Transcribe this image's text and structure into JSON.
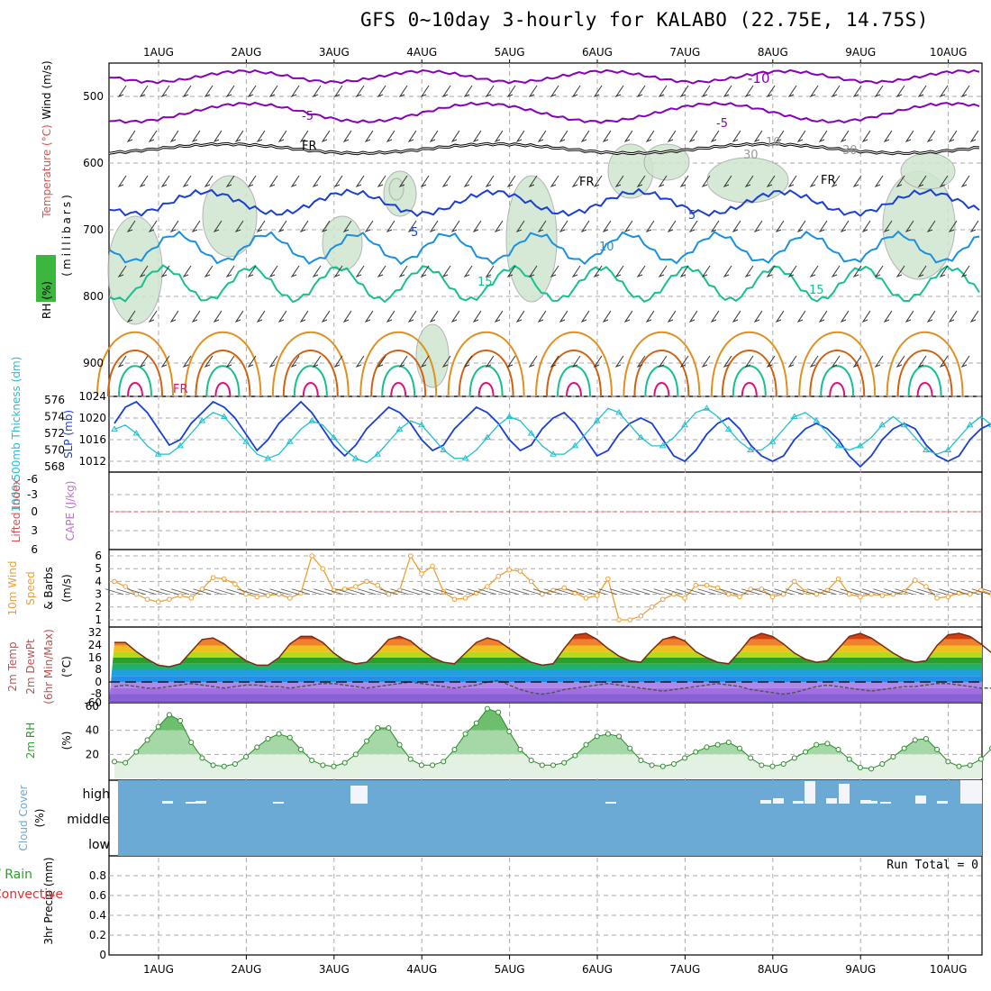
{
  "title": "GFS 0~10day 3-hourly for KALABO (22.75E, 14.75S)",
  "colors": {
    "grid": "#aaaaaa",
    "purple": "#8800bb",
    "black": "#000000",
    "blue": "#1a3fd6",
    "lightblue": "#1a90e0",
    "teal": "#18c090",
    "orange": "#e09020",
    "darkorange": "#d06010",
    "magenta": "#e0107a",
    "rh_fill": "#5aaa5a",
    "slp": "#1a3fd6",
    "thick": "#20c0d0",
    "ws": "#f0a030",
    "cloud": "#6aaad4",
    "precip_red": "#e03030",
    "rh2m": "#2aa02a"
  },
  "chart_data": [
    {
      "type": "line",
      "panel": "pressure-levels",
      "days": [
        "1AUG",
        "2AUG",
        "3AUG",
        "4AUG",
        "5AUG",
        "6AUG",
        "7AUG",
        "8AUG",
        "9AUG",
        "10AUG"
      ],
      "ylabel_parts": [
        "RH (%)",
        "Temperature (°C)",
        "Wind (m/s)",
        "(millibars)"
      ],
      "yticks": [
        500,
        600,
        700,
        800,
        900
      ],
      "ylim": [
        950,
        450
      ],
      "contour_labels": [
        "-10",
        "-5",
        "-5",
        "FR",
        "FR",
        "FR",
        "FR",
        "5",
        "5",
        "10",
        "15",
        "15",
        "10",
        "30",
        "30"
      ]
    },
    {
      "type": "line",
      "panel": "slp-thickness",
      "ylabel_left": "1000-500mb Thickness (dm)",
      "ylabel_right": "SLP (mb)",
      "thick_ticks": [
        568,
        570,
        572,
        574,
        576
      ],
      "slp_ticks": [
        1012,
        1016,
        1020,
        1024
      ],
      "series": [
        {
          "name": "SLP (mb)",
          "values": [
            1019,
            1022,
            1023,
            1021,
            1018,
            1015,
            1016,
            1019,
            1021,
            1023,
            1022,
            1020,
            1017,
            1014,
            1016,
            1019,
            1021,
            1023,
            1021,
            1018,
            1015,
            1013,
            1015,
            1018,
            1020,
            1022,
            1021,
            1019,
            1016,
            1014,
            1015,
            1018,
            1020,
            1022,
            1021,
            1019,
            1016,
            1014,
            1015,
            1018,
            1020,
            1021,
            1019,
            1016,
            1013,
            1014,
            1017,
            1019,
            1020,
            1019,
            1016,
            1013,
            1012,
            1014,
            1017,
            1019,
            1020,
            1018,
            1015,
            1013,
            1012,
            1013,
            1016,
            1018,
            1019,
            1018,
            1016,
            1013,
            1011,
            1013,
            1016,
            1018,
            1019,
            1018,
            1015,
            1013,
            1012,
            1013,
            1016,
            1018,
            1019,
            1017,
            1015,
            1013,
            1014,
            1016,
            1018,
            1020
          ]
        },
        {
          "name": "1000-500mb Thickness (dm)",
          "values": [
            572.5,
            573,
            572,
            570.5,
            569.5,
            569.5,
            570.5,
            572,
            573.5,
            574.5,
            574,
            572.5,
            571,
            569.5,
            569,
            569.5,
            571,
            572.5,
            573.5,
            573,
            571.5,
            570,
            569,
            568.5,
            569.5,
            571,
            572.5,
            573.5,
            573,
            571.5,
            570,
            569,
            569,
            570,
            571.5,
            573,
            574,
            573.5,
            572,
            570.5,
            569.5,
            569.5,
            570.5,
            572,
            573.5,
            575,
            574.5,
            573,
            571.5,
            570.5,
            570.5,
            571.5,
            573,
            574.5,
            575,
            574,
            572.5,
            571,
            570,
            570,
            571,
            572.5,
            574,
            574.5,
            573.5,
            572,
            570.5,
            570,
            570.5,
            571.5,
            573,
            574,
            573,
            571.5,
            570,
            569.5,
            570,
            571.5,
            573,
            574,
            573,
            571.5,
            570,
            569.5,
            570,
            571,
            572
          ]
        }
      ]
    },
    {
      "type": "line",
      "panel": "lifted-index-cape",
      "ylabel_a": "Lifted Index",
      "ylabel_b": "CAPE (J/kg)",
      "yticks": [
        "-6",
        "-3",
        "0",
        "3",
        "6"
      ]
    },
    {
      "type": "line",
      "panel": "10m-wind",
      "ylabel_a": "10m Wind",
      "ylabel_b": "Speed",
      "ylabel_c": "& Barbs",
      "ylabel_unit": "(m/s)",
      "yticks": [
        1,
        2,
        3,
        4,
        5,
        6
      ],
      "series": [
        {
          "name": "10m Wind Speed (m/s)",
          "values": [
            4.0,
            3.6,
            3.0,
            2.6,
            2.4,
            2.6,
            2.9,
            2.7,
            3.4,
            4.3,
            4.2,
            3.8,
            3.0,
            2.8,
            2.9,
            3.0,
            2.7,
            3.1,
            6.0,
            5.0,
            3.3,
            3.4,
            3.6,
            4.0,
            3.7,
            3.0,
            3.3,
            6.0,
            4.6,
            5.2,
            3.2,
            2.6,
            2.7,
            3.1,
            3.6,
            4.4,
            4.9,
            4.8,
            4.0,
            3.0,
            3.3,
            3.5,
            3.1,
            2.7,
            2.9,
            4.2,
            1.0,
            1.0,
            1.3,
            2.0,
            2.6,
            3.0,
            2.7,
            3.7,
            3.7,
            3.5,
            3.0,
            2.8,
            3.4,
            3.4,
            2.8,
            3.0,
            4.0,
            3.2,
            3.0,
            3.3,
            4.2,
            3.0,
            2.8,
            3.0,
            2.9,
            3.0,
            3.2,
            4.1,
            3.6,
            2.7,
            2.8,
            3.1,
            3.0,
            3.3,
            3.0,
            2.9,
            5.9,
            3.3,
            2.7,
            2.9,
            3.1,
            3.4
          ]
        }
      ]
    },
    {
      "type": "area",
      "panel": "2m-temp",
      "ylabel_a": "2m Temp",
      "ylabel_b": "2m DewPt",
      "ylabel_c": "(6hr Min/Max)",
      "ylabel_unit": "(°C)",
      "yticks": [
        "32",
        "24",
        "16",
        "8",
        "0",
        "-8",
        "-60"
      ],
      "series": [
        {
          "name": "2m Temp",
          "values": [
            26,
            26,
            20,
            15,
            11,
            10,
            12,
            20,
            28,
            29,
            25,
            19,
            14,
            11,
            11,
            16,
            25,
            30,
            30,
            26,
            19,
            14,
            12,
            13,
            20,
            28,
            30,
            27,
            21,
            16,
            13,
            12,
            19,
            26,
            29,
            27,
            22,
            17,
            13,
            11,
            12,
            22,
            31,
            32,
            28,
            22,
            17,
            14,
            13,
            21,
            28,
            30,
            27,
            20,
            16,
            13,
            12,
            20,
            29,
            32,
            30,
            25,
            19,
            15,
            13,
            14,
            22,
            30,
            32,
            29,
            24,
            19,
            15,
            13,
            14,
            24,
            31,
            32,
            30,
            25,
            19,
            15,
            13,
            13,
            16,
            15,
            14,
            14
          ]
        },
        {
          "name": "2m DewPt",
          "values": [
            -3,
            -2,
            -3,
            -4,
            -4,
            -3,
            -2,
            -1,
            -2,
            -3,
            -4,
            -3,
            -2,
            -2,
            -3,
            -3,
            -4,
            -3,
            -2,
            -1,
            -1,
            -2,
            -3,
            -4,
            -3,
            -2,
            -1,
            0,
            -1,
            -2,
            -3,
            -4,
            -3,
            -2,
            0,
            1,
            -2,
            -5,
            -7,
            -8,
            -7,
            -5,
            -4,
            -3,
            -2,
            -1,
            -2,
            -3,
            -4,
            -5,
            -6,
            -5,
            -4,
            -3,
            -2,
            -1,
            -2,
            -3,
            -5,
            -6,
            -7,
            -8,
            -7,
            -5,
            -3,
            -2,
            -3,
            -4,
            -5,
            -6,
            -5,
            -4,
            -3,
            -3,
            -2,
            -1,
            -1,
            -2,
            -3,
            -4,
            -4,
            -3,
            -2,
            -2,
            -2,
            -2,
            -1,
            0
          ]
        }
      ]
    },
    {
      "type": "area",
      "panel": "2m-rh",
      "ylabel": "2m RH",
      "ylabel_unit": "(%)",
      "yticks": [
        20,
        40,
        60
      ],
      "series": [
        {
          "name": "2m RH (%)",
          "values": [
            14,
            13,
            22,
            32,
            43,
            53,
            48,
            30,
            17,
            11,
            10,
            12,
            18,
            26,
            33,
            37,
            34,
            24,
            15,
            11,
            10,
            13,
            20,
            31,
            42,
            42,
            28,
            16,
            11,
            11,
            14,
            24,
            37,
            46,
            58,
            55,
            39,
            24,
            15,
            11,
            11,
            13,
            19,
            28,
            35,
            37,
            35,
            25,
            15,
            11,
            10,
            12,
            17,
            22,
            26,
            28,
            30,
            25,
            17,
            11,
            10,
            12,
            17,
            22,
            28,
            29,
            24,
            16,
            9,
            8,
            12,
            18,
            25,
            32,
            33,
            24,
            14,
            10,
            11,
            16,
            25,
            36,
            42,
            40,
            29,
            19,
            12,
            11
          ]
        }
      ]
    },
    {
      "type": "bar",
      "panel": "cloud-cover",
      "ylabel": "Cloud Cover",
      "ylabel_unit": "(%)",
      "levels": [
        "high",
        "middle",
        "low"
      ]
    },
    {
      "type": "bar",
      "panel": "precip",
      "ylabel_a": "Total / Rain",
      "ylabel_b": "Convective",
      "ylabel_c": "3hr Precip (mm)",
      "yticks": [
        "0",
        "0.2",
        "0.4",
        "0.6",
        "0.8"
      ],
      "run_total": "Run Total = 0",
      "values": []
    }
  ]
}
